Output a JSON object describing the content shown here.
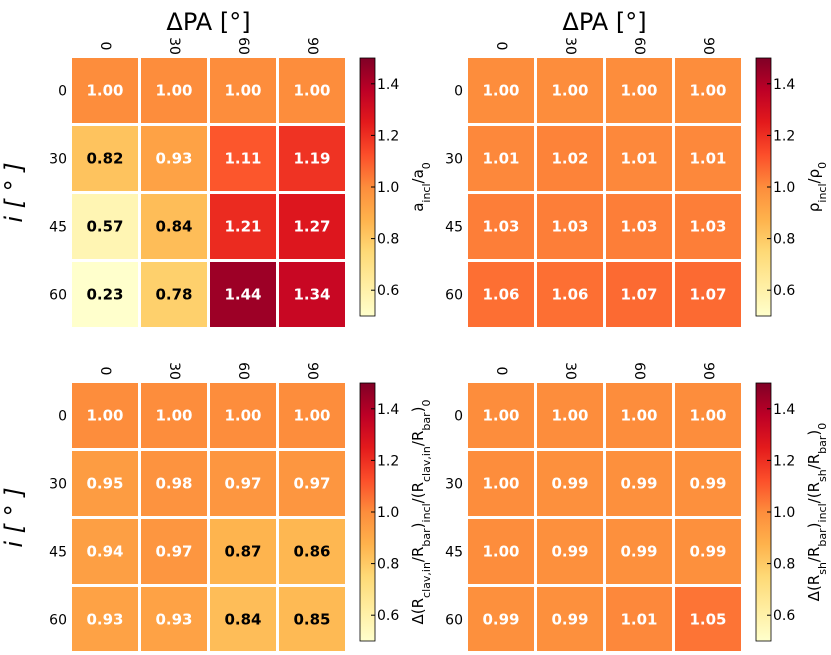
{
  "chart_data": [
    {
      "type": "heatmap",
      "title": "ΔPA [°]",
      "xlabel": "ΔPA [°]",
      "ylabel": "i [ ° ]",
      "x_categories": [
        "0",
        "30",
        "60",
        "90"
      ],
      "y_categories": [
        "0",
        "30",
        "45",
        "60"
      ],
      "values": [
        [
          1.0,
          1.0,
          1.0,
          1.0
        ],
        [
          0.82,
          0.93,
          1.11,
          1.19
        ],
        [
          0.57,
          0.84,
          1.21,
          1.27
        ],
        [
          0.23,
          0.78,
          1.44,
          1.34
        ]
      ],
      "colorbar": {
        "label": "a_incl/a_0",
        "range": [
          0.5,
          1.5
        ],
        "ticks": [
          "0.6",
          "0.8",
          "1.0",
          "1.2",
          "1.4"
        ],
        "colormap": "YlOrRd"
      }
    },
    {
      "type": "heatmap",
      "title": "ΔPA [°]",
      "xlabel": "ΔPA [°]",
      "ylabel": "",
      "x_categories": [
        "0",
        "30",
        "60",
        "90"
      ],
      "y_categories": [
        "0",
        "30",
        "45",
        "60"
      ],
      "values": [
        [
          1.0,
          1.0,
          1.0,
          1.0
        ],
        [
          1.01,
          1.02,
          1.01,
          1.01
        ],
        [
          1.03,
          1.03,
          1.03,
          1.03
        ],
        [
          1.06,
          1.06,
          1.07,
          1.07
        ]
      ],
      "colorbar": {
        "label": "ρ_incl/ρ_0",
        "range": [
          0.5,
          1.5
        ],
        "ticks": [
          "0.6",
          "0.8",
          "1.0",
          "1.2",
          "1.4"
        ],
        "colormap": "YlOrRd"
      }
    },
    {
      "type": "heatmap",
      "title": "",
      "xlabel": "",
      "ylabel": "i [ ° ]",
      "x_categories": [
        "0",
        "30",
        "60",
        "90"
      ],
      "y_categories": [
        "0",
        "30",
        "45",
        "60"
      ],
      "values": [
        [
          1.0,
          1.0,
          1.0,
          1.0
        ],
        [
          0.95,
          0.98,
          0.97,
          0.97
        ],
        [
          0.94,
          0.97,
          0.87,
          0.86
        ],
        [
          0.93,
          0.93,
          0.84,
          0.85
        ]
      ],
      "colorbar": {
        "label": "Δ(R_clav,in/R_bar)_incl/(R_clav,in/R_bar)_0",
        "range": [
          0.5,
          1.5
        ],
        "ticks": [
          "0.6",
          "0.8",
          "1.0",
          "1.2",
          "1.4"
        ],
        "colormap": "YlOrRd"
      }
    },
    {
      "type": "heatmap",
      "title": "",
      "xlabel": "",
      "ylabel": "",
      "x_categories": [
        "0",
        "30",
        "60",
        "90"
      ],
      "y_categories": [
        "0",
        "30",
        "45",
        "60"
      ],
      "values": [
        [
          1.0,
          1.0,
          1.0,
          1.0
        ],
        [
          1.0,
          0.99,
          0.99,
          0.99
        ],
        [
          1.0,
          0.99,
          0.99,
          0.99
        ],
        [
          0.99,
          0.99,
          1.01,
          1.05
        ]
      ],
      "colorbar": {
        "label": "Δ(R_sh/R_bar)_incl/(R_sh/R_bar)_0",
        "range": [
          0.5,
          1.5
        ],
        "ticks": [
          "0.6",
          "0.8",
          "1.0",
          "1.2",
          "1.4"
        ],
        "colormap": "YlOrRd"
      }
    }
  ]
}
